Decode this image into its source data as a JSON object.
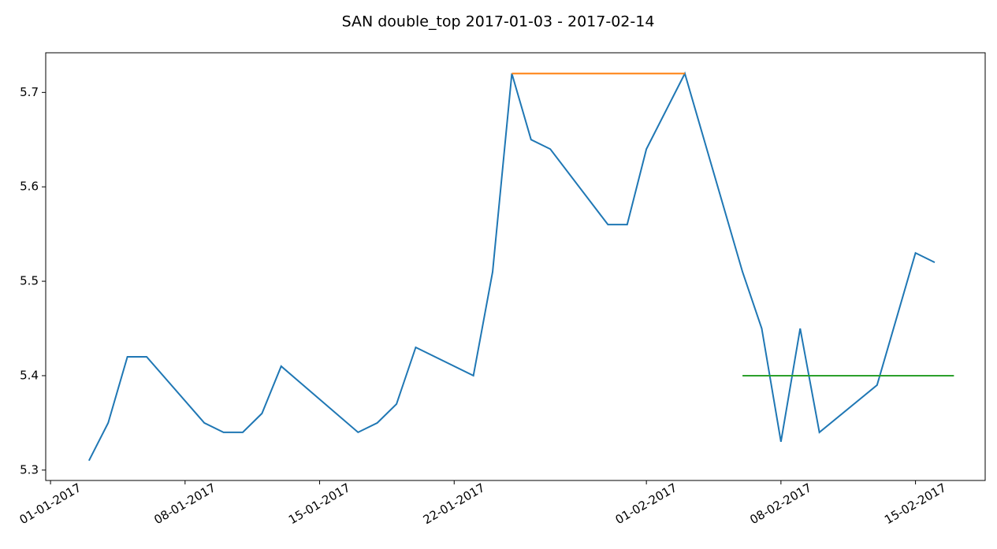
{
  "chart_data": {
    "type": "line",
    "title": "SAN double_top 2017-01-03 - 2017-02-14",
    "xlim": [
      "2016-12-31T18:00Z",
      "2017-02-18T15:00Z"
    ],
    "ylim": [
      5.289,
      5.742
    ],
    "yticks": [
      5.3,
      5.4,
      5.5,
      5.6,
      5.7
    ],
    "xticks": [
      {
        "value": "2017-01-01",
        "label": "01-01-2017"
      },
      {
        "value": "2017-01-08",
        "label": "08-01-2017"
      },
      {
        "value": "2017-01-15",
        "label": "15-01-2017"
      },
      {
        "value": "2017-01-22",
        "label": "22-01-2017"
      },
      {
        "value": "2017-02-01",
        "label": "01-02-2017"
      },
      {
        "value": "2017-02-08",
        "label": "08-02-2017"
      },
      {
        "value": "2017-02-15",
        "label": "15-02-2017"
      }
    ],
    "grid": false,
    "series": [
      {
        "color": "#1f77b4",
        "x": [
          "2017-01-03",
          "2017-01-04",
          "2017-01-05",
          "2017-01-06",
          "2017-01-09",
          "2017-01-10",
          "2017-01-11",
          "2017-01-12",
          "2017-01-13",
          "2017-01-17",
          "2017-01-18",
          "2017-01-19",
          "2017-01-20",
          "2017-01-23",
          "2017-01-24",
          "2017-01-25",
          "2017-01-26",
          "2017-01-27",
          "2017-01-30",
          "2017-01-31",
          "2017-02-01",
          "2017-02-03",
          "2017-02-06",
          "2017-02-07",
          "2017-02-08",
          "2017-02-09",
          "2017-02-10",
          "2017-02-13",
          "2017-02-15",
          "2017-02-16"
        ],
        "values": [
          5.31,
          5.35,
          5.42,
          5.42,
          5.35,
          5.34,
          5.34,
          5.36,
          5.41,
          5.34,
          5.35,
          5.37,
          5.43,
          5.4,
          5.51,
          5.72,
          5.65,
          5.64,
          5.56,
          5.56,
          5.64,
          5.72,
          5.51,
          5.45,
          5.33,
          5.45,
          5.34,
          5.39,
          5.53,
          5.52
        ]
      },
      {
        "color": "#ff7f0e",
        "x": [
          "2017-01-25",
          "2017-02-03"
        ],
        "values": [
          5.72,
          5.72
        ]
      },
      {
        "color": "#2ca02c",
        "x": [
          "2017-02-06",
          "2017-02-17"
        ],
        "values": [
          5.4,
          5.4
        ]
      }
    ]
  }
}
